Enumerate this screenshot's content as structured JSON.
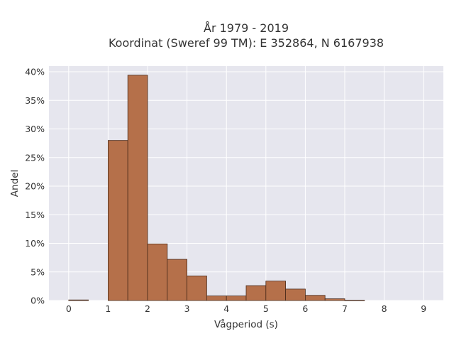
{
  "chart_data": {
    "type": "bar",
    "title_lines": [
      "År 1979 - 2019",
      "Koordinat (Sweref 99 TM): E 352864, N 6167938"
    ],
    "xlabel": "Vågperiod (s)",
    "ylabel": "Andel",
    "xlim": [
      -0.5,
      9.5
    ],
    "ylim": [
      0,
      0.41
    ],
    "x_ticks": [
      0,
      1,
      2,
      3,
      4,
      5,
      6,
      7,
      8,
      9
    ],
    "x_tick_labels": [
      "0",
      "1",
      "2",
      "3",
      "4",
      "5",
      "6",
      "7",
      "8",
      "9"
    ],
    "y_ticks": [
      0,
      0.05,
      0.1,
      0.15,
      0.2,
      0.25,
      0.3,
      0.35,
      0.4
    ],
    "y_tick_labels": [
      "0%",
      "5%",
      "10%",
      "15%",
      "20%",
      "25%",
      "30%",
      "35%",
      "40%"
    ],
    "bin_width": 0.5,
    "bins": [
      {
        "x_start": 0.0,
        "value": 0.001
      },
      {
        "x_start": 1.0,
        "value": 0.28
      },
      {
        "x_start": 1.5,
        "value": 0.394
      },
      {
        "x_start": 2.0,
        "value": 0.099
      },
      {
        "x_start": 2.5,
        "value": 0.072
      },
      {
        "x_start": 3.0,
        "value": 0.043
      },
      {
        "x_start": 3.5,
        "value": 0.008
      },
      {
        "x_start": 4.0,
        "value": 0.008
      },
      {
        "x_start": 4.5,
        "value": 0.026
      },
      {
        "x_start": 5.0,
        "value": 0.034
      },
      {
        "x_start": 5.5,
        "value": 0.02
      },
      {
        "x_start": 6.0,
        "value": 0.009
      },
      {
        "x_start": 6.5,
        "value": 0.003
      },
      {
        "x_start": 7.0,
        "value": 0.0005
      }
    ],
    "grid": true,
    "colors": {
      "bar_fill": "#b5704a",
      "bar_edge": "#4a2a1a",
      "plot_background": "#e6e6ee",
      "grid": "#ffffff"
    }
  }
}
